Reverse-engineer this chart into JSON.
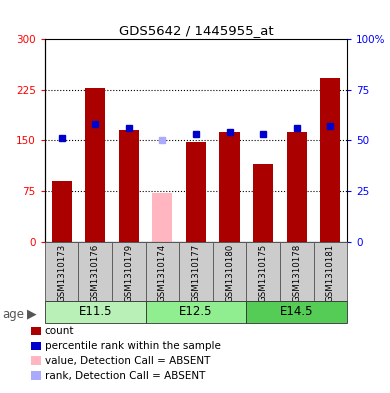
{
  "title": "GDS5642 / 1445955_at",
  "samples": [
    "GSM1310173",
    "GSM1310176",
    "GSM1310179",
    "GSM1310174",
    "GSM1310177",
    "GSM1310180",
    "GSM1310175",
    "GSM1310178",
    "GSM1310181"
  ],
  "counts": [
    90,
    228,
    165,
    null,
    148,
    163,
    115,
    163,
    242
  ],
  "absent_count": [
    null,
    null,
    null,
    72,
    null,
    null,
    null,
    null,
    null
  ],
  "ranks": [
    51,
    58,
    56,
    null,
    53,
    54,
    53,
    56,
    57
  ],
  "absent_rank": [
    null,
    null,
    null,
    50,
    null,
    null,
    null,
    null,
    null
  ],
  "groups": [
    {
      "label": "E11.5",
      "start": 0,
      "end": 3
    },
    {
      "label": "E12.5",
      "start": 3,
      "end": 6
    },
    {
      "label": "E14.5",
      "start": 6,
      "end": 9
    }
  ],
  "group_colors": [
    "#c8f5c8",
    "#90ee90",
    "#4cbb4c"
  ],
  "age_label": "age",
  "ylim_left": [
    0,
    300
  ],
  "ylim_right": [
    0,
    100
  ],
  "yticks_left": [
    0,
    75,
    150,
    225,
    300
  ],
  "ytick_labels_left": [
    "0",
    "75",
    "150",
    "225",
    "300"
  ],
  "yticks_right": [
    0,
    25,
    50,
    75,
    100
  ],
  "ytick_labels_right": [
    "0",
    "25",
    "50",
    "75",
    "100%"
  ],
  "bar_color": "#aa0000",
  "absent_bar_color": "#ffb6c1",
  "rank_color": "#0000cc",
  "absent_rank_color": "#aaaaff",
  "tick_bg_color": "#cccccc",
  "legend_items": [
    {
      "label": "count",
      "color": "#aa0000"
    },
    {
      "label": "percentile rank within the sample",
      "color": "#0000cc"
    },
    {
      "label": "value, Detection Call = ABSENT",
      "color": "#ffb6c1"
    },
    {
      "label": "rank, Detection Call = ABSENT",
      "color": "#aaaaff"
    }
  ]
}
